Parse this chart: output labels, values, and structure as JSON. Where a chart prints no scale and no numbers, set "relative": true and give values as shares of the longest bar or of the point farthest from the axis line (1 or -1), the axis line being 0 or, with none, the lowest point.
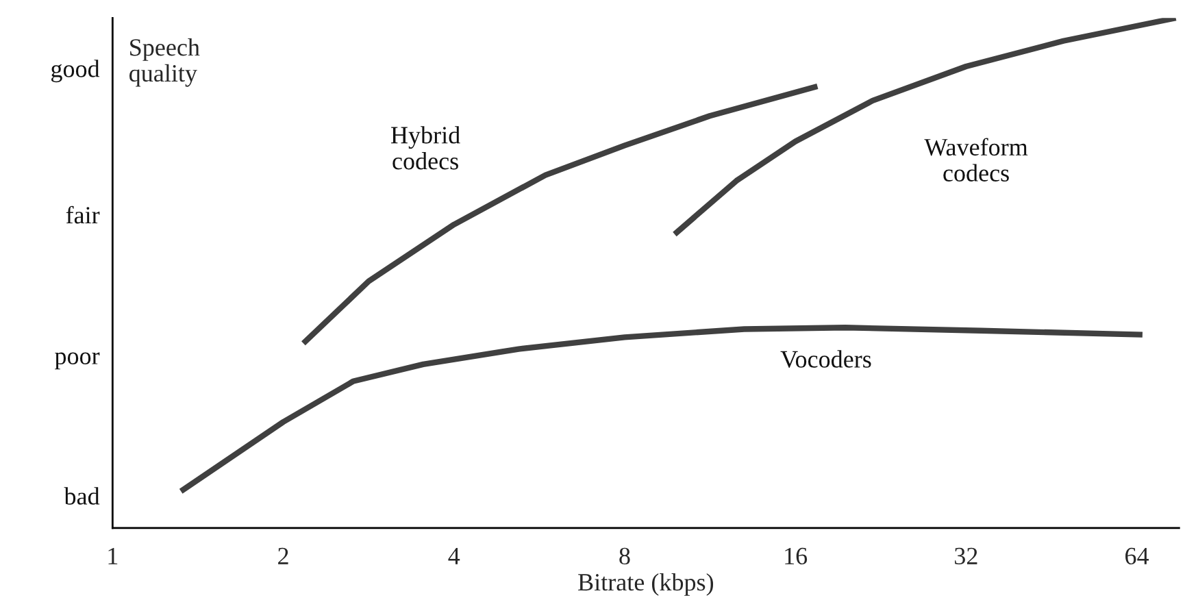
{
  "chart_data": {
    "type": "line",
    "relative": true,
    "xlabel": "Bitrate (kbps)",
    "ylabel": "Speech\nquality",
    "log": "x",
    "xlim": [
      1,
      76
    ],
    "xticks": [
      1,
      2,
      4,
      8,
      16,
      32,
      64
    ],
    "annotations": [
      "bad",
      "poor",
      "fair",
      "good"
    ],
    "marker": "none",
    "line_style": "solid",
    "series": [
      {
        "name": "Hybrid\ncodecs",
        "color": "#404040",
        "x": [
          2.17,
          2.83,
          4,
          5.8,
          8,
          11.3,
          17.5
        ],
        "values": [
          0.362,
          0.484,
          0.595,
          0.692,
          0.75,
          0.808,
          0.866
        ]
      },
      {
        "name": "Waveform\ncodecs",
        "color": "#404040",
        "x": [
          9.8,
          12.6,
          16,
          21.9,
          32,
          47.5,
          75
        ],
        "values": [
          0.576,
          0.681,
          0.758,
          0.838,
          0.905,
          0.955,
          1
        ]
      },
      {
        "name": "Vocoders",
        "color": "#404040",
        "x": [
          1.32,
          2,
          2.66,
          3.53,
          5.2,
          8,
          13,
          19.6,
          34,
          65.5
        ],
        "values": [
          0.072,
          0.208,
          0.288,
          0.321,
          0.351,
          0.374,
          0.39,
          0.393,
          0.387,
          0.379
        ]
      }
    ]
  }
}
